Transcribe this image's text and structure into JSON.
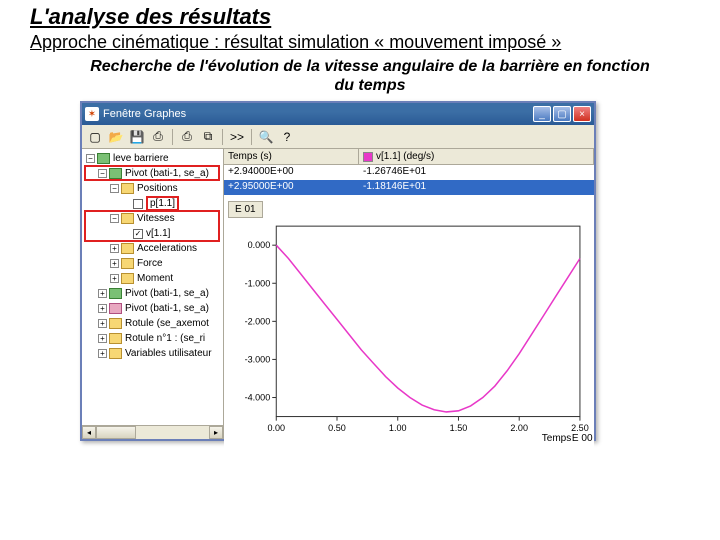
{
  "slide": {
    "title": "L'analyse des résultats",
    "subtitle": "Approche cinématique : résultat simulation « mouvement imposé »",
    "caption": "Recherche de l'évolution de la vitesse angulaire de la barrière en fonction du temps"
  },
  "window": {
    "title": "Fenêtre Graphes",
    "icon_glyph": "✶"
  },
  "toolbar": {
    "buttons": [
      {
        "name": "new-icon",
        "glyph": "▢"
      },
      {
        "name": "open-icon",
        "glyph": "📂"
      },
      {
        "name": "save-icon",
        "glyph": "💾"
      },
      {
        "name": "save-all-icon",
        "glyph": "⎙"
      },
      {
        "name": "sep",
        "glyph": "|"
      },
      {
        "name": "print-icon",
        "glyph": "⎙"
      },
      {
        "name": "copy-icon",
        "glyph": "⧉"
      },
      {
        "name": "sep",
        "glyph": "|"
      },
      {
        "name": "props-icon",
        "glyph": ">>"
      },
      {
        "name": "sep",
        "glyph": "|"
      },
      {
        "name": "zoom-icon",
        "glyph": "🔍"
      },
      {
        "name": "help-icon",
        "glyph": "?"
      }
    ]
  },
  "tree": {
    "rows": [
      {
        "indent": 0,
        "toggle": "−",
        "folder": "green",
        "label": "leve barriere"
      },
      {
        "indent": 1,
        "toggle": "−",
        "folder": "green",
        "label": "Pivot (bati-1, se_a)",
        "hl": true
      },
      {
        "indent": 2,
        "toggle": "−",
        "folder": "yellow",
        "label": "Positions"
      },
      {
        "indent": 3,
        "checkbox": false,
        "label": "p[1.1]",
        "hl_label": true
      },
      {
        "indent": 2,
        "toggle": "−",
        "folder": "yellow",
        "label": "Vitesses",
        "hl2": true
      },
      {
        "indent": 3,
        "checkbox": true,
        "label": "v[1.1]"
      },
      {
        "indent": 2,
        "toggle": "+",
        "folder": "yellow",
        "label": "Accelerations"
      },
      {
        "indent": 2,
        "toggle": "+",
        "folder": "yellow",
        "label": "Force"
      },
      {
        "indent": 2,
        "toggle": "+",
        "folder": "yellow",
        "label": "Moment"
      },
      {
        "indent": 1,
        "toggle": "+",
        "folder": "green",
        "label": "Pivot (bati-1, se_a)"
      },
      {
        "indent": 1,
        "toggle": "+",
        "folder": "pink",
        "label": "Pivot (bati-1, se_a)"
      },
      {
        "indent": 1,
        "toggle": "+",
        "folder": "yellow",
        "label": "Rotule (se_axemot"
      },
      {
        "indent": 1,
        "toggle": "+",
        "folder": "yellow",
        "label": "Rotule n°1 : (se_ri"
      },
      {
        "indent": 1,
        "toggle": "+",
        "folder": "yellow",
        "label": "Variables utilisateur"
      }
    ]
  },
  "data_table": {
    "col1_header": "Temps (s)",
    "col2_header": "v[1.1] (deg/s)",
    "rows": [
      {
        "time": "+2.94000E+00",
        "val": "-1.26746E+01",
        "selected": false
      },
      {
        "time": "+2.95000E+00",
        "val": "-1.18146E+01",
        "selected": true
      }
    ]
  },
  "chart": {
    "title": "E 01",
    "x_label": "Temps",
    "x_unit": "E 00",
    "series_color": "#e838c8",
    "frame_color": "#333333",
    "grid_color": "#c0c0c0",
    "tick_color": "#333333",
    "background": "#ffffff",
    "xlim": [
      0.0,
      2.5
    ],
    "ylim": [
      -4.5,
      0.5
    ],
    "xticks": [
      0.0,
      0.5,
      1.0,
      1.5,
      2.0,
      2.5
    ],
    "yticks": [
      0.0,
      -1.0,
      -2.0,
      -3.0,
      -4.0
    ],
    "ytick_labels": [
      "0.000",
      "-1.000",
      "-2.000",
      "-3.000",
      "-4.000"
    ],
    "xtick_labels": [
      "0.00",
      "0.50",
      "1.00",
      "1.50",
      "2.00",
      "2.50"
    ],
    "curve": [
      [
        0.0,
        0.0
      ],
      [
        0.1,
        -0.35
      ],
      [
        0.2,
        -0.75
      ],
      [
        0.3,
        -1.15
      ],
      [
        0.4,
        -1.55
      ],
      [
        0.5,
        -1.95
      ],
      [
        0.6,
        -2.35
      ],
      [
        0.7,
        -2.75
      ],
      [
        0.8,
        -3.1
      ],
      [
        0.9,
        -3.45
      ],
      [
        1.0,
        -3.75
      ],
      [
        1.1,
        -4.0
      ],
      [
        1.2,
        -4.2
      ],
      [
        1.3,
        -4.32
      ],
      [
        1.4,
        -4.38
      ],
      [
        1.5,
        -4.35
      ],
      [
        1.6,
        -4.22
      ],
      [
        1.7,
        -4.0
      ],
      [
        1.8,
        -3.7
      ],
      [
        1.9,
        -3.3
      ],
      [
        2.0,
        -2.85
      ],
      [
        2.1,
        -2.35
      ],
      [
        2.2,
        -1.85
      ],
      [
        2.3,
        -1.35
      ],
      [
        2.4,
        -0.85
      ],
      [
        2.5,
        -0.35
      ]
    ],
    "tick_fontsize": 9
  },
  "colors": {
    "titlebar": "#3b6ea5",
    "panel": "#ece9d8",
    "highlight": "#e02020",
    "selection": "#316ac5"
  }
}
